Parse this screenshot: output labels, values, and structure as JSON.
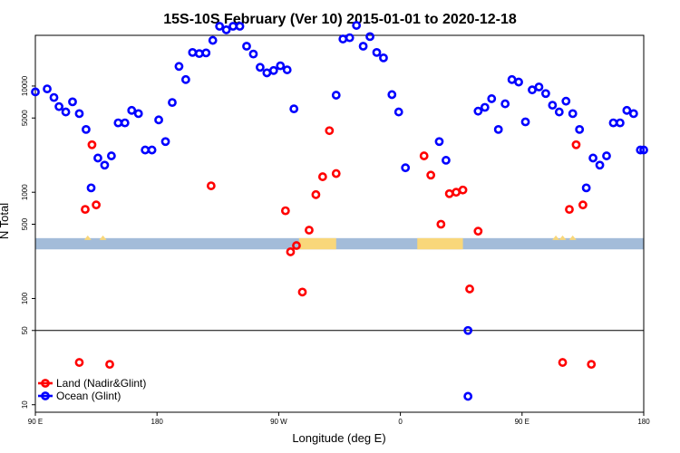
{
  "chart_data": {
    "type": "scatter",
    "title": "15S-10S February (Ver 10)   2015-01-01 to 2020-12-18",
    "xlabel": "Longitude (deg E)",
    "ylabel": "N Total",
    "x_range": [
      90,
      450
    ],
    "y_scale": "log",
    "ylim": [
      8.5,
      30000
    ],
    "x_ticks": [
      {
        "x": 90,
        "label": "90 E"
      },
      {
        "x": 162,
        "label": "180"
      },
      {
        "x": 234,
        "label": "90 W"
      },
      {
        "x": 306,
        "label": "0"
      },
      {
        "x": 378,
        "label": "90 E"
      },
      {
        "x": 450,
        "label": "180"
      }
    ],
    "y_ticks": [
      {
        "y": 10,
        "label": "10"
      },
      {
        "y": 50,
        "label": "50"
      },
      {
        "y": 100,
        "label": "100"
      },
      {
        "y": 500,
        "label": "500"
      },
      {
        "y": 1000,
        "label": "1000"
      },
      {
        "y": 5000,
        "label": "5000"
      },
      {
        "y": 10000,
        "label": "10000"
      }
    ],
    "reference_line": {
      "y": 50,
      "color": "#000000"
    },
    "map_band": {
      "y_bottom": 290,
      "y_top": 370,
      "ocean_color": "#a3bcd9",
      "land_color": "#f9d77a"
    },
    "legend": {
      "position": "bottom-left"
    },
    "series": [
      {
        "name": "Land (Nadir&Glint)",
        "color": "#ff0000",
        "points": [
          [
            116,
            25
          ],
          [
            119.5,
            690
          ],
          [
            123.5,
            2800
          ],
          [
            126,
            760
          ],
          [
            134,
            24
          ],
          [
            194,
            1150
          ],
          [
            238,
            670
          ],
          [
            241,
            275
          ],
          [
            244.5,
            315
          ],
          [
            248,
            115
          ],
          [
            252,
            440
          ],
          [
            256,
            950
          ],
          [
            260,
            1400
          ],
          [
            264,
            3800
          ],
          [
            268,
            1500
          ],
          [
            320,
            2200
          ],
          [
            324,
            1450
          ],
          [
            330,
            500
          ],
          [
            335,
            970
          ],
          [
            339,
            1000
          ],
          [
            343,
            1050
          ],
          [
            347,
            123
          ],
          [
            352,
            430
          ],
          [
            402,
            25
          ],
          [
            406,
            690
          ],
          [
            410,
            2800
          ],
          [
            414,
            760
          ],
          [
            419,
            24
          ]
        ]
      },
      {
        "name": "Ocean (Glint)",
        "color": "#0000ff",
        "points": [
          [
            90,
            8800
          ],
          [
            97,
            9400
          ],
          [
            101,
            7800
          ],
          [
            104,
            6400
          ],
          [
            108,
            5700
          ],
          [
            112,
            7100
          ],
          [
            116,
            5500
          ],
          [
            120,
            3900
          ],
          [
            123,
            1100
          ],
          [
            127,
            2100
          ],
          [
            131,
            1800
          ],
          [
            135,
            2200
          ],
          [
            139,
            4500
          ],
          [
            143,
            4500
          ],
          [
            147,
            5900
          ],
          [
            151,
            5500
          ],
          [
            155,
            2500
          ],
          [
            159,
            2500
          ],
          [
            163,
            4800
          ],
          [
            167,
            3000
          ],
          [
            171,
            7000
          ],
          [
            175,
            15300
          ],
          [
            179,
            11500
          ],
          [
            183,
            20700
          ],
          [
            187,
            20200
          ],
          [
            191,
            20500
          ],
          [
            195,
            26900
          ],
          [
            199,
            36500
          ],
          [
            203,
            33800
          ],
          [
            207,
            36500
          ],
          [
            211,
            36500
          ],
          [
            215,
            23700
          ],
          [
            219,
            20000
          ],
          [
            223,
            15000
          ],
          [
            227,
            13300
          ],
          [
            231,
            14000
          ],
          [
            235,
            15500
          ],
          [
            239,
            14200
          ],
          [
            243,
            6100
          ],
          [
            268,
            8200
          ],
          [
            272,
            27700
          ],
          [
            276,
            28500
          ],
          [
            280,
            37200
          ],
          [
            284,
            23700
          ],
          [
            288,
            29200
          ],
          [
            292,
            20700
          ],
          [
            296,
            18400
          ],
          [
            301,
            8300
          ],
          [
            305,
            5700
          ],
          [
            309,
            1700
          ],
          [
            329,
            3000
          ],
          [
            333,
            2000
          ],
          [
            346,
            50
          ],
          [
            346,
            12
          ],
          [
            352,
            5800
          ],
          [
            356,
            6300
          ],
          [
            360,
            7600
          ],
          [
            364,
            3900
          ],
          [
            368,
            6800
          ],
          [
            372,
            11500
          ],
          [
            376,
            10900
          ],
          [
            380,
            4600
          ],
          [
            384,
            9200
          ],
          [
            388,
            9800
          ],
          [
            392,
            8500
          ],
          [
            396,
            6600
          ],
          [
            400,
            5700
          ],
          [
            404,
            7200
          ],
          [
            408,
            5500
          ],
          [
            412,
            3900
          ],
          [
            416,
            1100
          ],
          [
            420,
            2100
          ],
          [
            424,
            1800
          ],
          [
            428,
            2200
          ],
          [
            432,
            4500
          ],
          [
            436,
            4500
          ],
          [
            440,
            5900
          ],
          [
            444,
            5500
          ],
          [
            448,
            2500
          ],
          [
            450,
            2500
          ]
        ]
      }
    ]
  }
}
